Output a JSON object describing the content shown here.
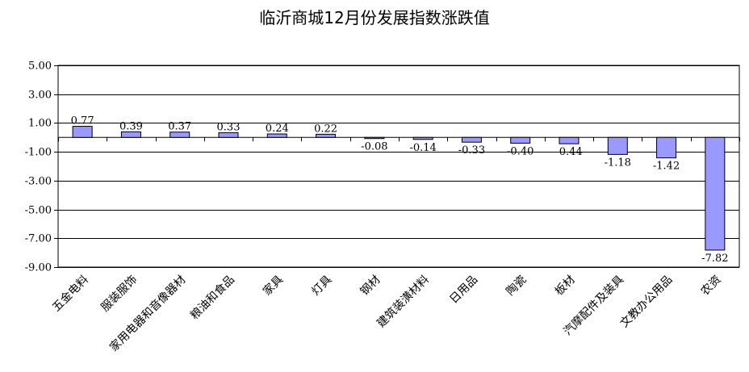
{
  "chart_data": {
    "type": "bar",
    "title": "临沂商城12月份发展指数涨跌值",
    "categories": [
      "五金电料",
      "服装服饰",
      "家用电器和音像器材",
      "粮油和食品",
      "家具",
      "灯具",
      "钢材",
      "建筑装潢材料",
      "日用品",
      "陶瓷",
      "板材",
      "汽摩配件及装具",
      "文教办公用品",
      "农资"
    ],
    "values": [
      0.77,
      0.39,
      0.37,
      0.33,
      0.24,
      0.22,
      -0.08,
      -0.14,
      -0.33,
      -0.4,
      -0.44,
      -1.18,
      -1.42,
      -7.82
    ],
    "value_labels": [
      "0.77",
      "0.39",
      "0.37",
      "0.33",
      "0.24",
      "0.22",
      "-0.08",
      "-0.14",
      "-0.33",
      "-0.40",
      "-0.44",
      "-1.18",
      "-1.42",
      "-7.82"
    ],
    "yticks": [
      "5.00",
      "3.00",
      "1.00",
      "-1.00",
      "-3.00",
      "-5.00",
      "-7.00",
      "-9.00"
    ],
    "ytick_values": [
      5,
      3,
      1,
      -1,
      -3,
      -5,
      -7,
      -9
    ],
    "ylim": [
      -9,
      5
    ],
    "grid": true,
    "xlabel": "",
    "ylabel": "",
    "colors": {
      "bar_fill": "#9999ff",
      "bar_stroke": "#000000",
      "grid": "#000000"
    }
  }
}
